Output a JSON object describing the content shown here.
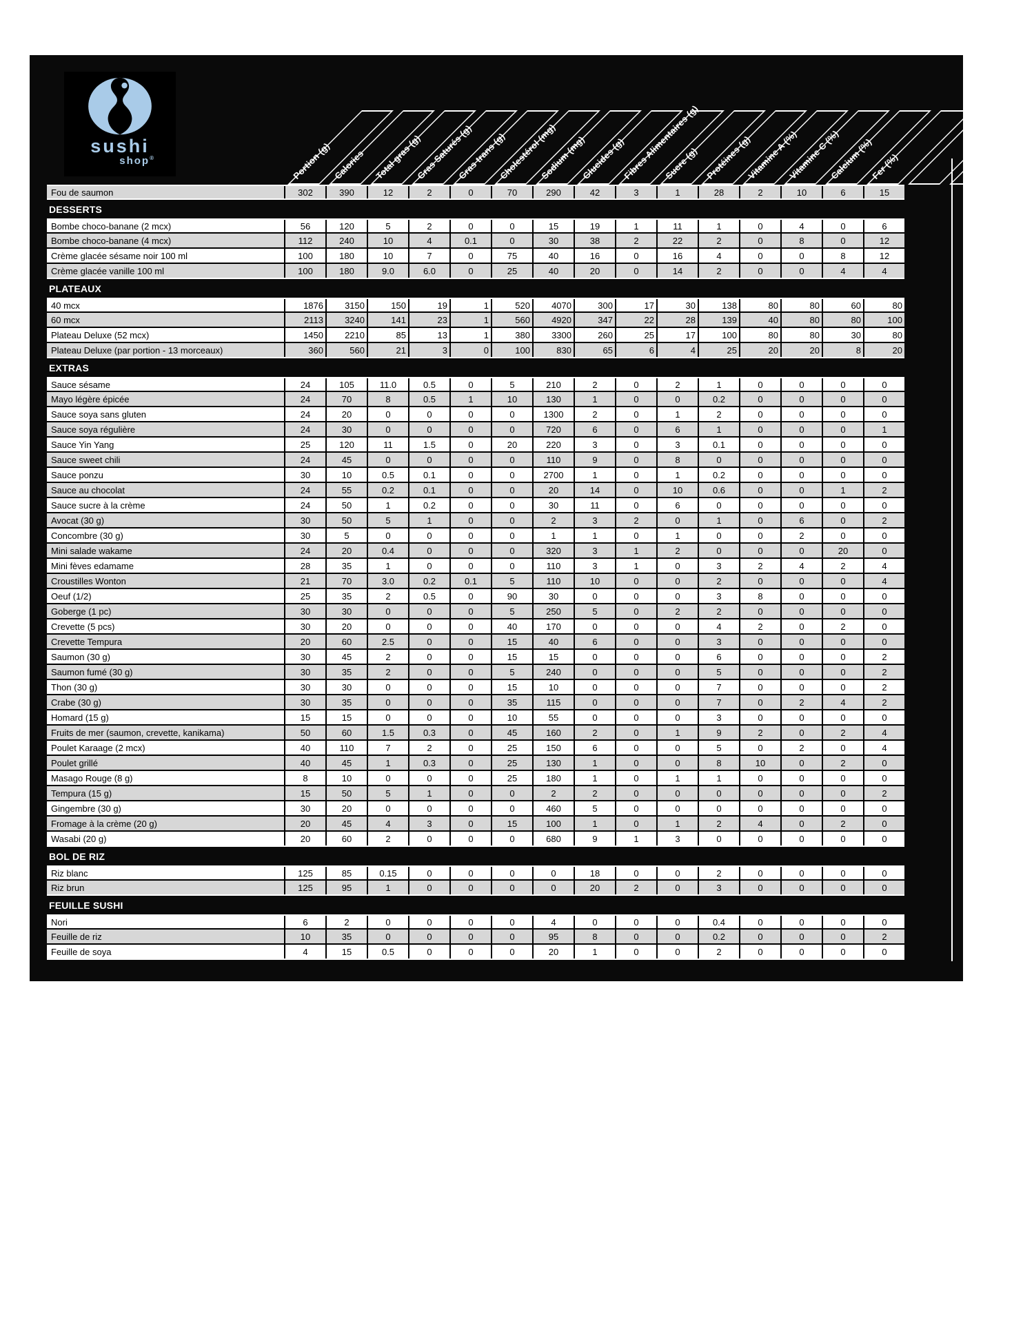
{
  "logo": {
    "word1": "sushi",
    "word2": "shop",
    "registered": "®"
  },
  "colors": {
    "accent_blue": "#a9cbe8",
    "row_gray": "#d7d7d7",
    "panel_black": "#0a0a0a"
  },
  "columns": [
    "Portion (g)",
    "Calories",
    "Total gras (g)",
    "Gras Saturés (g)",
    "Gras trans (g)",
    "Cholestérol (mg)",
    "Sodium (mg)",
    "Glucides (g)",
    "Fibres Alimentaires (g)",
    "Sucre (g)",
    "Protéines (g)",
    "Vitamine A (%)",
    "Vitamine C (%)",
    "Calcium (%)",
    "Fer (%)"
  ],
  "sections": [
    {
      "title": "",
      "value_align": "center",
      "first_row_shade": "gray",
      "rows": [
        {
          "label": "Fou de saumon",
          "values": [
            "302",
            "390",
            "12",
            "2",
            "0",
            "70",
            "290",
            "42",
            "3",
            "1",
            "28",
            "2",
            "10",
            "6",
            "15"
          ]
        }
      ]
    },
    {
      "title": "DESSERTS",
      "value_align": "center",
      "first_row_shade": "white",
      "rows": [
        {
          "label": "Bombe choco-banane (2 mcx)",
          "values": [
            "56",
            "120",
            "5",
            "2",
            "0",
            "0",
            "15",
            "19",
            "1",
            "11",
            "1",
            "0",
            "4",
            "0",
            "6"
          ]
        },
        {
          "label": "Bombe choco-banane (4 mcx)",
          "values": [
            "112",
            "240",
            "10",
            "4",
            "0.1",
            "0",
            "30",
            "38",
            "2",
            "22",
            "2",
            "0",
            "8",
            "0",
            "12"
          ]
        },
        {
          "label": "Crème glacée sésame noir 100 ml",
          "values": [
            "100",
            "180",
            "10",
            "7",
            "0",
            "75",
            "40",
            "16",
            "0",
            "16",
            "4",
            "0",
            "0",
            "8",
            "12"
          ]
        },
        {
          "label": "Crème glacée vanille 100 ml",
          "values": [
            "100",
            "180",
            "9.0",
            "6.0",
            "0",
            "25",
            "40",
            "20",
            "0",
            "14",
            "2",
            "0",
            "0",
            "4",
            "4"
          ]
        }
      ]
    },
    {
      "title": "PLATEAUX",
      "value_align": "right",
      "first_row_shade": "white",
      "rows": [
        {
          "label": "40 mcx",
          "values": [
            "1876",
            "3150",
            "150",
            "19",
            "1",
            "520",
            "4070",
            "300",
            "17",
            "30",
            "138",
            "80",
            "80",
            "60",
            "80"
          ]
        },
        {
          "label": "60 mcx",
          "values": [
            "2113",
            "3240",
            "141",
            "23",
            "1",
            "560",
            "4920",
            "347",
            "22",
            "28",
            "139",
            "40",
            "80",
            "80",
            "100"
          ]
        },
        {
          "label": "Plateau Deluxe (52 mcx)",
          "values": [
            "1450",
            "2210",
            "85",
            "13",
            "1",
            "380",
            "3300",
            "260",
            "25",
            "17",
            "100",
            "80",
            "80",
            "30",
            "80"
          ]
        },
        {
          "label": "Plateau Deluxe (par portion - 13 morceaux)",
          "values": [
            "360",
            "560",
            "21",
            "3",
            "0",
            "100",
            "830",
            "65",
            "6",
            "4",
            "25",
            "20",
            "20",
            "8",
            "20"
          ]
        }
      ]
    },
    {
      "title": "EXTRAS",
      "value_align": "center",
      "first_row_shade": "white",
      "rows": [
        {
          "label": "Sauce sésame",
          "values": [
            "24",
            "105",
            "11.0",
            "0.5",
            "0",
            "5",
            "210",
            "2",
            "0",
            "2",
            "1",
            "0",
            "0",
            "0",
            "0"
          ]
        },
        {
          "label": "Mayo légère épicée",
          "values": [
            "24",
            "70",
            "8",
            "0.5",
            "1",
            "10",
            "130",
            "1",
            "0",
            "0",
            "0.2",
            "0",
            "0",
            "0",
            "0"
          ]
        },
        {
          "label": "Sauce soya sans gluten",
          "values": [
            "24",
            "20",
            "0",
            "0",
            "0",
            "0",
            "1300",
            "2",
            "0",
            "1",
            "2",
            "0",
            "0",
            "0",
            "0"
          ]
        },
        {
          "label": "Sauce soya régulière",
          "values": [
            "24",
            "30",
            "0",
            "0",
            "0",
            "0",
            "720",
            "6",
            "0",
            "6",
            "1",
            "0",
            "0",
            "0",
            "1"
          ]
        },
        {
          "label": "Sauce Yin Yang",
          "values": [
            "25",
            "120",
            "11",
            "1.5",
            "0",
            "20",
            "220",
            "3",
            "0",
            "3",
            "0.1",
            "0",
            "0",
            "0",
            "0"
          ]
        },
        {
          "label": "Sauce sweet chili",
          "values": [
            "24",
            "45",
            "0",
            "0",
            "0",
            "0",
            "110",
            "9",
            "0",
            "8",
            "0",
            "0",
            "0",
            "0",
            "0"
          ]
        },
        {
          "label": "Sauce ponzu",
          "values": [
            "30",
            "10",
            "0.5",
            "0.1",
            "0",
            "0",
            "2700",
            "1",
            "0",
            "1",
            "0.2",
            "0",
            "0",
            "0",
            "0"
          ]
        },
        {
          "label": "Sauce au chocolat",
          "values": [
            "24",
            "55",
            "0.2",
            "0.1",
            "0",
            "0",
            "20",
            "14",
            "0",
            "10",
            "0.6",
            "0",
            "0",
            "1",
            "2"
          ]
        },
        {
          "label": "Sauce sucre à la crème",
          "values": [
            "24",
            "50",
            "1",
            "0.2",
            "0",
            "0",
            "30",
            "11",
            "0",
            "6",
            "0",
            "0",
            "0",
            "0",
            "0"
          ]
        },
        {
          "label": "Avocat (30 g)",
          "values": [
            "30",
            "50",
            "5",
            "1",
            "0",
            "0",
            "2",
            "3",
            "2",
            "0",
            "1",
            "0",
            "6",
            "0",
            "2"
          ]
        },
        {
          "label": "Concombre (30 g)",
          "values": [
            "30",
            "5",
            "0",
            "0",
            "0",
            "0",
            "1",
            "1",
            "0",
            "1",
            "0",
            "0",
            "2",
            "0",
            "0"
          ]
        },
        {
          "label": "Mini salade wakame",
          "values": [
            "24",
            "20",
            "0.4",
            "0",
            "0",
            "0",
            "320",
            "3",
            "1",
            "2",
            "0",
            "0",
            "0",
            "20",
            "0"
          ]
        },
        {
          "label": "Mini fèves edamame",
          "values": [
            "28",
            "35",
            "1",
            "0",
            "0",
            "0",
            "110",
            "3",
            "1",
            "0",
            "3",
            "2",
            "4",
            "2",
            "4"
          ]
        },
        {
          "label": "Croustilles Wonton",
          "values": [
            "21",
            "70",
            "3.0",
            "0.2",
            "0.1",
            "5",
            "110",
            "10",
            "0",
            "0",
            "2",
            "0",
            "0",
            "0",
            "4"
          ]
        },
        {
          "label": "Oeuf (1/2)",
          "values": [
            "25",
            "35",
            "2",
            "0.5",
            "0",
            "90",
            "30",
            "0",
            "0",
            "0",
            "3",
            "8",
            "0",
            "0",
            "0"
          ]
        },
        {
          "label": "Goberge (1 pc)",
          "values": [
            "30",
            "30",
            "0",
            "0",
            "0",
            "5",
            "250",
            "5",
            "0",
            "2",
            "2",
            "0",
            "0",
            "0",
            "0"
          ]
        },
        {
          "label": "Crevette (5 pcs)",
          "values": [
            "30",
            "20",
            "0",
            "0",
            "0",
            "40",
            "170",
            "0",
            "0",
            "0",
            "4",
            "2",
            "0",
            "2",
            "0"
          ]
        },
        {
          "label": "Crevette Tempura",
          "values": [
            "20",
            "60",
            "2.5",
            "0",
            "0",
            "15",
            "40",
            "6",
            "0",
            "0",
            "3",
            "0",
            "0",
            "0",
            "0"
          ]
        },
        {
          "label": "Saumon (30 g)",
          "values": [
            "30",
            "45",
            "2",
            "0",
            "0",
            "15",
            "15",
            "0",
            "0",
            "0",
            "6",
            "0",
            "0",
            "0",
            "2"
          ]
        },
        {
          "label": "Saumon fumé (30 g)",
          "values": [
            "30",
            "35",
            "2",
            "0",
            "0",
            "5",
            "240",
            "0",
            "0",
            "0",
            "5",
            "0",
            "0",
            "0",
            "2"
          ]
        },
        {
          "label": "Thon (30 g)",
          "values": [
            "30",
            "30",
            "0",
            "0",
            "0",
            "15",
            "10",
            "0",
            "0",
            "0",
            "7",
            "0",
            "0",
            "0",
            "2"
          ]
        },
        {
          "label": "Crabe (30 g)",
          "values": [
            "30",
            "35",
            "0",
            "0",
            "0",
            "35",
            "115",
            "0",
            "0",
            "0",
            "7",
            "0",
            "2",
            "4",
            "2"
          ]
        },
        {
          "label": "Homard (15 g)",
          "values": [
            "15",
            "15",
            "0",
            "0",
            "0",
            "10",
            "55",
            "0",
            "0",
            "0",
            "3",
            "0",
            "0",
            "0",
            "0"
          ]
        },
        {
          "label": "Fruits de mer (saumon, crevette, kanikama)",
          "values": [
            "50",
            "60",
            "1.5",
            "0.3",
            "0",
            "45",
            "160",
            "2",
            "0",
            "1",
            "9",
            "2",
            "0",
            "2",
            "4"
          ]
        },
        {
          "label": "Poulet Karaage (2 mcx)",
          "values": [
            "40",
            "110",
            "7",
            "2",
            "0",
            "25",
            "150",
            "6",
            "0",
            "0",
            "5",
            "0",
            "2",
            "0",
            "4"
          ]
        },
        {
          "label": "Poulet grillé",
          "values": [
            "40",
            "45",
            "1",
            "0.3",
            "0",
            "25",
            "130",
            "1",
            "0",
            "0",
            "8",
            "10",
            "0",
            "2",
            "0"
          ]
        },
        {
          "label": "Masago Rouge (8 g)",
          "values": [
            "8",
            "10",
            "0",
            "0",
            "0",
            "25",
            "180",
            "1",
            "0",
            "1",
            "1",
            "0",
            "0",
            "0",
            "0"
          ]
        },
        {
          "label": "Tempura (15 g)",
          "values": [
            "15",
            "50",
            "5",
            "1",
            "0",
            "0",
            "2",
            "2",
            "0",
            "0",
            "0",
            "0",
            "0",
            "0",
            "2"
          ]
        },
        {
          "label": "Gingembre (30 g)",
          "values": [
            "30",
            "20",
            "0",
            "0",
            "0",
            "0",
            "460",
            "5",
            "0",
            "0",
            "0",
            "0",
            "0",
            "0",
            "0"
          ]
        },
        {
          "label": "Fromage à la crème (20 g)",
          "values": [
            "20",
            "45",
            "4",
            "3",
            "0",
            "15",
            "100",
            "1",
            "0",
            "1",
            "2",
            "4",
            "0",
            "2",
            "0"
          ]
        },
        {
          "label": "Wasabi (20 g)",
          "values": [
            "20",
            "60",
            "2",
            "0",
            "0",
            "0",
            "680",
            "9",
            "1",
            "3",
            "0",
            "0",
            "0",
            "0",
            "0"
          ]
        }
      ]
    },
    {
      "title": "BOL DE RIZ",
      "value_align": "center",
      "first_row_shade": "white",
      "rows": [
        {
          "label": "Riz blanc",
          "values": [
            "125",
            "85",
            "0.15",
            "0",
            "0",
            "0",
            "0",
            "18",
            "0",
            "0",
            "2",
            "0",
            "0",
            "0",
            "0"
          ]
        },
        {
          "label": "Riz brun",
          "values": [
            "125",
            "95",
            "1",
            "0",
            "0",
            "0",
            "0",
            "20",
            "2",
            "0",
            "3",
            "0",
            "0",
            "0",
            "0"
          ]
        }
      ]
    },
    {
      "title": "FEUILLE SUSHI",
      "value_align": "center",
      "first_row_shade": "white",
      "rows": [
        {
          "label": "Nori",
          "values": [
            "6",
            "2",
            "0",
            "0",
            "0",
            "0",
            "4",
            "0",
            "0",
            "0",
            "0.4",
            "0",
            "0",
            "0",
            "0"
          ]
        },
        {
          "label": "Feuille de riz",
          "values": [
            "10",
            "35",
            "0",
            "0",
            "0",
            "0",
            "95",
            "8",
            "0",
            "0",
            "0.2",
            "0",
            "0",
            "0",
            "2"
          ]
        },
        {
          "label": "Feuille de soya",
          "values": [
            "4",
            "15",
            "0.5",
            "0",
            "0",
            "0",
            "20",
            "1",
            "0",
            "0",
            "2",
            "0",
            "0",
            "0",
            "0"
          ]
        }
      ]
    }
  ]
}
